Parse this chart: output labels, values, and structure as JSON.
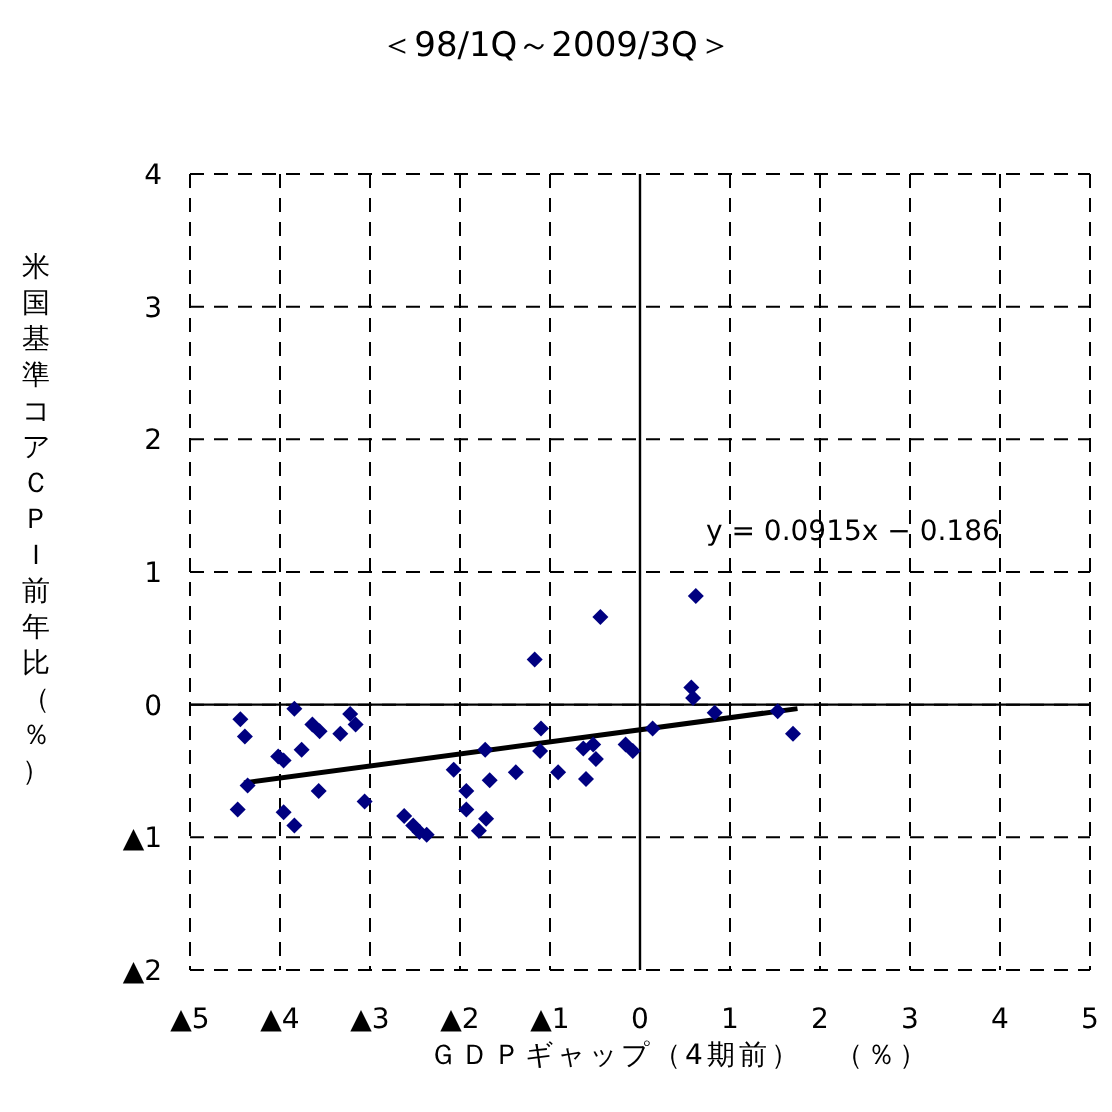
{
  "chart_data": {
    "type": "scatter",
    "title": "＜98/1Q～2009/3Q＞",
    "xlabel": "ＧＤＰギャップ（4期前）　（％）",
    "ylabel": "米国基準コアＣＰＩ前年比（％）",
    "xlim": [
      -5,
      5
    ],
    "ylim": [
      -2,
      4
    ],
    "xticks": [
      {
        "value": -5,
        "label": "▲5"
      },
      {
        "value": -4,
        "label": "▲4"
      },
      {
        "value": -3,
        "label": "▲3"
      },
      {
        "value": -2,
        "label": "▲2"
      },
      {
        "value": -1,
        "label": "▲1"
      },
      0,
      1,
      2,
      3,
      4,
      5
    ],
    "yticks": [
      {
        "value": -2,
        "label": "▲2"
      },
      {
        "value": -1,
        "label": "▲1"
      },
      0,
      1,
      2,
      3,
      4
    ],
    "grid": true,
    "marker": "diamond",
    "annotations": [
      "y = 0.0915x − 0.186"
    ],
    "series": [
      {
        "color": "#000080",
        "x": [
          -4.44,
          -4.39,
          -4.47,
          -4.36,
          -4.02,
          -3.96,
          -3.84,
          -3.96,
          -3.84,
          -3.76,
          -3.64,
          -3.56,
          -3.57,
          -3.33,
          -3.22,
          -3.16,
          -3.06,
          -2.62,
          -2.52,
          -2.45,
          -2.37,
          -2.07,
          -1.93,
          -1.93,
          -1.72,
          -1.67,
          -1.71,
          -1.79,
          -1.38,
          -1.17,
          -1.1,
          -1.11,
          -0.91,
          -0.6,
          -0.63,
          -0.52,
          -0.49,
          -0.44,
          -0.16,
          -0.08,
          0.14,
          0.62,
          0.57,
          0.59,
          0.83,
          1.53,
          1.7
        ],
        "values": [
          -0.11,
          -0.24,
          -0.79,
          -0.61,
          -0.39,
          -0.42,
          -0.03,
          -0.81,
          -0.91,
          -0.34,
          -0.15,
          -0.2,
          -0.65,
          -0.22,
          -0.07,
          -0.15,
          -0.73,
          -0.84,
          -0.91,
          -0.96,
          -0.98,
          -0.49,
          -0.65,
          -0.79,
          -0.34,
          -0.57,
          -0.86,
          -0.95,
          -0.51,
          0.34,
          -0.18,
          -0.35,
          -0.51,
          -0.56,
          -0.33,
          -0.3,
          -0.41,
          0.66,
          -0.3,
          -0.35,
          -0.18,
          0.82,
          0.13,
          0.05,
          -0.06,
          -0.05,
          -0.22
        ]
      },
      {
        "type": "line",
        "color": "#000000",
        "marker": "none",
        "line_style": "solid",
        "x": [
          -4.4,
          1.75
        ],
        "values": [
          -0.59,
          -0.03
        ]
      }
    ]
  }
}
